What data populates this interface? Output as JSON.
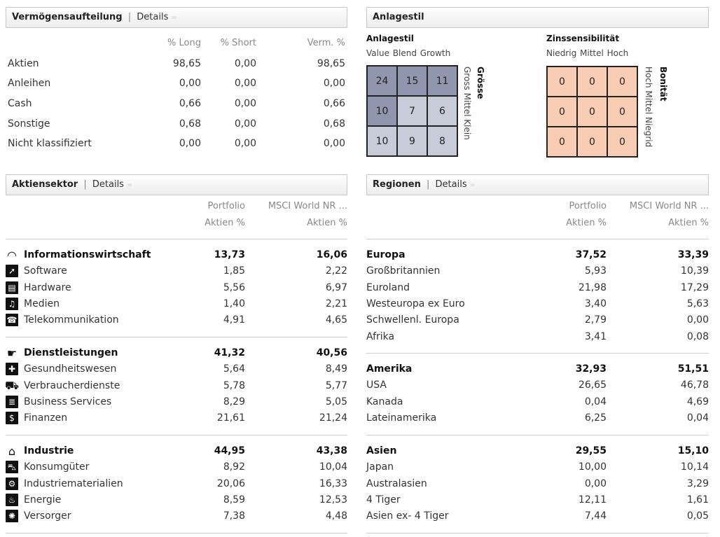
{
  "allocation": {
    "title": "Vermögensaufteilung",
    "details": "Details",
    "headers": [
      "% Long",
      "% Short",
      "Verm. %"
    ],
    "rows": [
      {
        "label": "Aktien",
        "long": "98,65",
        "short": "0,00",
        "verm": "98,65"
      },
      {
        "label": "Anleihen",
        "long": "0,00",
        "short": "0,00",
        "verm": "0,00"
      },
      {
        "label": "Cash",
        "long": "0,66",
        "short": "0,00",
        "verm": "0,66"
      },
      {
        "label": "Sonstige",
        "long": "0,68",
        "short": "0,00",
        "verm": "0,68"
      },
      {
        "label": "Nicht klassifiziert",
        "long": "0,00",
        "short": "0,00",
        "verm": "0,00"
      }
    ]
  },
  "style": {
    "title": "Anlagestil",
    "equity": {
      "title": "Anlagestil",
      "cols": "Value Blend Growth",
      "side_title": "Grösse",
      "side_labels": "Gross Mittel Klein",
      "cells": [
        "24",
        "15",
        "11",
        "10",
        "7",
        "6",
        "10",
        "9",
        "8"
      ],
      "shades": [
        "#8f96ad",
        "#8f96ad",
        "#8f96ad",
        "#8f96ad",
        "#c8ccd8",
        "#c8ccd8",
        "#c8ccd8",
        "#c8ccd8",
        "#c8ccd8"
      ]
    },
    "fixed": {
      "title": "Zinssensibilität",
      "cols": "Niedrig Mittel Hoch",
      "side_title": "Bonität",
      "side_labels": "Hoch Mittel Niegrid",
      "cells": [
        "0",
        "0",
        "0",
        "0",
        "0",
        "0",
        "0",
        "0",
        "0"
      ],
      "shade": "#f8cdb4"
    }
  },
  "sector": {
    "title": "Aktiensektor",
    "details": "Details",
    "col1": "Portfolio",
    "col2": "MSCI World NR ...",
    "unit1": "Aktien %",
    "unit2": "Aktien %",
    "groups": [
      {
        "label": "Informationswirtschaft",
        "icon": "eye-icon",
        "p": "13,73",
        "b": "16,06",
        "items": [
          {
            "label": "Software",
            "icon": "cursor-icon",
            "p": "1,85",
            "b": "2,22"
          },
          {
            "label": "Hardware",
            "icon": "computer-icon",
            "p": "5,56",
            "b": "6,97"
          },
          {
            "label": "Medien",
            "icon": "microphone-icon",
            "p": "1,40",
            "b": "2,21"
          },
          {
            "label": "Telekommunikation",
            "icon": "phone-icon",
            "p": "4,91",
            "b": "4,65"
          }
        ]
      },
      {
        "label": "Dienstleistungen",
        "icon": "service-hand-icon",
        "p": "41,32",
        "b": "40,56",
        "items": [
          {
            "label": "Gesundheitswesen",
            "icon": "pill-icon",
            "p": "5,64",
            "b": "8,49"
          },
          {
            "label": "Verbraucherdienste",
            "icon": "cart-icon",
            "p": "5,78",
            "b": "5,77"
          },
          {
            "label": "Business Services",
            "icon": "document-icon",
            "p": "8,29",
            "b": "5,05"
          },
          {
            "label": "Finanzen",
            "icon": "dollar-icon",
            "p": "21,61",
            "b": "21,24"
          }
        ]
      },
      {
        "label": "Industrie",
        "icon": "factory-icon",
        "p": "44,95",
        "b": "43,38",
        "items": [
          {
            "label": "Konsumgüter",
            "icon": "car-icon",
            "p": "8,92",
            "b": "10,04"
          },
          {
            "label": "Industriematerialien",
            "icon": "gear-icon",
            "p": "20,06",
            "b": "16,33"
          },
          {
            "label": "Energie",
            "icon": "flame-icon",
            "p": "8,59",
            "b": "12,53"
          },
          {
            "label": "Versorger",
            "icon": "lightbulb-icon",
            "p": "7,38",
            "b": "4,48"
          }
        ]
      }
    ]
  },
  "regions": {
    "title": "Regionen",
    "details": "Details",
    "col1": "Portfolio",
    "col2": "MSCI World NR ...",
    "unit1": "Aktien %",
    "unit2": "Aktien %",
    "groups": [
      {
        "label": "Europa",
        "p": "37,52",
        "b": "33,39",
        "items": [
          {
            "label": "Großbritannien",
            "p": "5,93",
            "b": "10,39"
          },
          {
            "label": "Euroland",
            "p": "21,98",
            "b": "17,29"
          },
          {
            "label": "Westeuropa ex Euro",
            "p": "3,40",
            "b": "5,63"
          },
          {
            "label": "Schwellenl. Europa",
            "p": "2,79",
            "b": "0,00"
          },
          {
            "label": "Afrika",
            "p": "3,41",
            "b": "0,08"
          }
        ]
      },
      {
        "label": "Amerika",
        "p": "32,93",
        "b": "51,51",
        "items": [
          {
            "label": "USA",
            "p": "26,65",
            "b": "46,78"
          },
          {
            "label": "Kanada",
            "p": "0,04",
            "b": "4,69"
          },
          {
            "label": "Lateinamerika",
            "p": "6,25",
            "b": "0,04"
          }
        ]
      },
      {
        "label": "Asien",
        "p": "29,55",
        "b": "15,10",
        "items": [
          {
            "label": "Japan",
            "p": "10,00",
            "b": "10,14"
          },
          {
            "label": "Australasien",
            "p": "0,00",
            "b": "3,29"
          },
          {
            "label": "4 Tiger",
            "p": "12,11",
            "b": "1,61"
          },
          {
            "label": "Asien ex- 4 Tiger",
            "p": "7,44",
            "b": "0,05"
          }
        ]
      }
    ]
  }
}
